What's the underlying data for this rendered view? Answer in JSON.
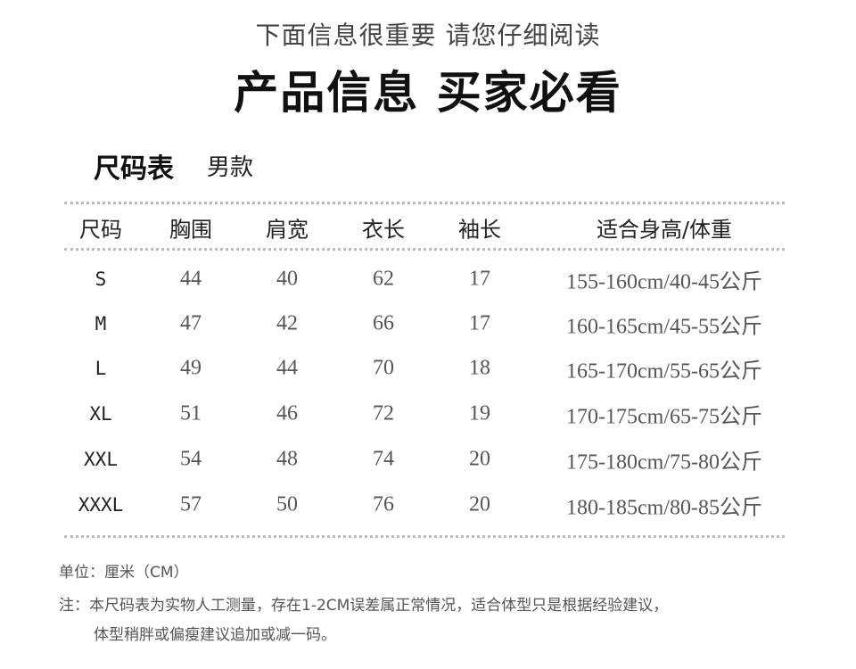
{
  "header": {
    "subtitle": "下面信息很重要  请您仔细阅读",
    "title": "产品信息 买家必看"
  },
  "section": {
    "title": "尺码表",
    "subtitle": "男款"
  },
  "table": {
    "columns": [
      "尺码",
      "胸围",
      "肩宽",
      "衣长",
      "袖长",
      "适合身高/体重"
    ],
    "rows": [
      [
        "S",
        "44",
        "40",
        "62",
        "17",
        "155-160cm/40-45公斤"
      ],
      [
        "M",
        "47",
        "42",
        "66",
        "17",
        "160-165cm/45-55公斤"
      ],
      [
        "L",
        "49",
        "44",
        "70",
        "18",
        "165-170cm/55-65公斤"
      ],
      [
        "XL",
        "51",
        "46",
        "72",
        "19",
        "170-175cm/65-75公斤"
      ],
      [
        "XXL",
        "54",
        "48",
        "74",
        "20",
        "175-180cm/75-80公斤"
      ],
      [
        "XXXL",
        "57",
        "50",
        "76",
        "20",
        "180-185cm/80-85公斤"
      ]
    ]
  },
  "notes": {
    "unit": "单位：厘米（CM）",
    "note_line1": "注：本尺码表为实物人工测量，存在1-2CM误差属正常情况，适合体型只是根据经验建议，",
    "note_line2": "体型稍胖或偏瘦建议追加或减一码。"
  }
}
